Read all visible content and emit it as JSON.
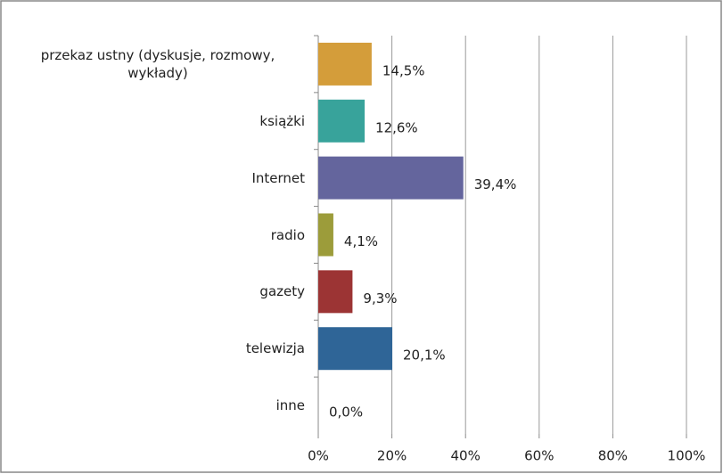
{
  "chart_data": {
    "type": "bar",
    "orientation": "horizontal",
    "categories": [
      "przekaz ustny (dyskusje, rozmowy, wykłady)",
      "książki",
      "Internet",
      "radio",
      "gazety",
      "telewizja",
      "inne"
    ],
    "values": [
      14.5,
      12.6,
      39.4,
      4.1,
      9.3,
      20.1,
      0.0
    ],
    "value_labels": [
      "14,5%",
      "12,6%",
      "39,4%",
      "4,1%",
      "9,3%",
      "20,1%",
      "0,0%"
    ],
    "colors": [
      "#d49d3a",
      "#38a39b",
      "#64659d",
      "#9c9c3a",
      "#9c3434",
      "#2f6597",
      "#808080"
    ],
    "xlim": [
      0,
      100
    ],
    "xticks": [
      {
        "value": 0,
        "label": "0%"
      },
      {
        "value": 20,
        "label": "20%"
      },
      {
        "value": 40,
        "label": "40%"
      },
      {
        "value": 60,
        "label": "60%"
      },
      {
        "value": 80,
        "label": "80%"
      },
      {
        "value": 100,
        "label": "100%"
      }
    ],
    "grid": true
  }
}
